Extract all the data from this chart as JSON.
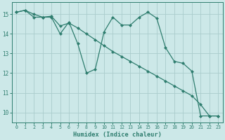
{
  "xlabel": "Humidex (Indice chaleur)",
  "background_color": "#cce8e8",
  "grid_color": "#aacccc",
  "line_color": "#2e7d6e",
  "xlim": [
    -0.5,
    23.5
  ],
  "ylim": [
    9.5,
    15.6
  ],
  "yticks": [
    10,
    11,
    12,
    13,
    14,
    15
  ],
  "xticks": [
    0,
    1,
    2,
    3,
    4,
    5,
    6,
    7,
    8,
    9,
    10,
    11,
    12,
    13,
    14,
    15,
    16,
    17,
    18,
    19,
    20,
    21,
    22,
    23
  ],
  "s1_x": [
    0,
    1,
    2,
    3,
    4,
    5,
    6,
    7,
    8,
    9,
    10,
    11,
    12,
    13,
    14,
    15,
    16,
    17,
    18,
    19,
    20,
    21,
    22,
    23
  ],
  "s1_y": [
    15.1,
    15.2,
    15.0,
    14.85,
    14.9,
    14.4,
    14.55,
    14.3,
    14.0,
    13.7,
    13.4,
    13.1,
    12.85,
    12.6,
    12.35,
    12.1,
    11.85,
    11.6,
    11.35,
    11.1,
    10.85,
    10.4,
    9.82,
    9.82
  ],
  "s2_x": [
    0,
    1,
    2,
    3,
    4,
    5,
    6,
    7,
    8,
    9,
    10,
    11,
    12,
    13,
    14,
    15,
    16,
    17,
    18,
    19,
    20,
    21,
    22,
    23
  ],
  "s2_y": [
    15.1,
    15.2,
    14.85,
    14.85,
    14.85,
    14.0,
    14.6,
    13.5,
    12.0,
    12.2,
    14.1,
    14.85,
    14.45,
    14.45,
    14.85,
    15.1,
    14.8,
    13.3,
    12.6,
    12.5,
    12.1,
    9.82,
    9.82,
    9.82
  ]
}
